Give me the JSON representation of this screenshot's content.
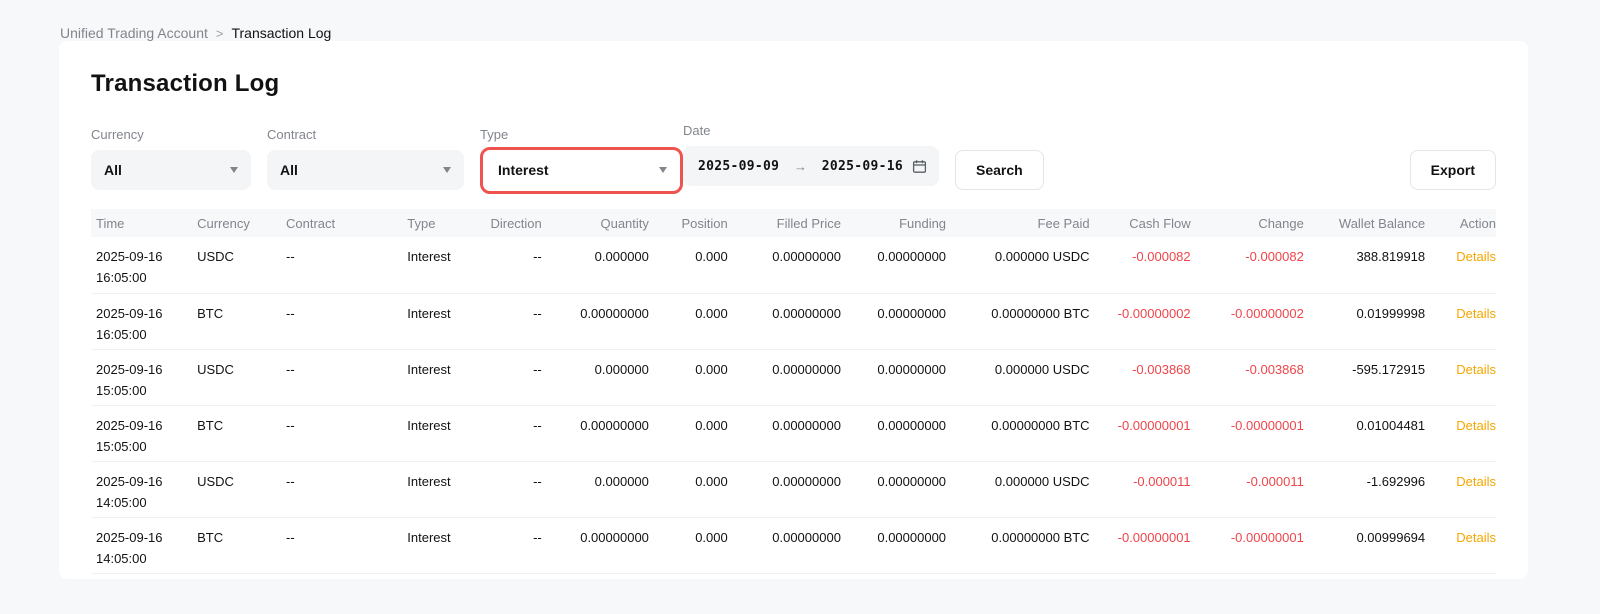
{
  "breadcrumb": {
    "parent": "Unified Trading Account",
    "separator": ">",
    "current": "Transaction Log"
  },
  "page": {
    "title": "Transaction Log"
  },
  "filters": {
    "currency": {
      "label": "Currency",
      "value": "All"
    },
    "contract": {
      "label": "Contract",
      "value": "All"
    },
    "type": {
      "label": "Type",
      "value": "Interest",
      "highlighted": true
    },
    "date": {
      "label": "Date",
      "from": "2025-09-09",
      "arrow": "→",
      "to": "2025-09-16"
    },
    "search_label": "Search",
    "export_label": "Export"
  },
  "colors": {
    "accent_orange": "#f7a600",
    "negative_red": "#ef454a",
    "highlight_border_red": "#ee534f"
  },
  "table": {
    "columns": [
      {
        "key": "time",
        "label": "Time",
        "align": "left"
      },
      {
        "key": "currency",
        "label": "Currency",
        "align": "left"
      },
      {
        "key": "contract",
        "label": "Contract",
        "align": "left"
      },
      {
        "key": "type",
        "label": "Type",
        "align": "left"
      },
      {
        "key": "direction",
        "label": "Direction",
        "align": "right"
      },
      {
        "key": "quantity",
        "label": "Quantity",
        "align": "right"
      },
      {
        "key": "position",
        "label": "Position",
        "align": "right"
      },
      {
        "key": "filled_price",
        "label": "Filled Price",
        "align": "right"
      },
      {
        "key": "funding",
        "label": "Funding",
        "align": "right"
      },
      {
        "key": "fee_paid",
        "label": "Fee Paid",
        "align": "right"
      },
      {
        "key": "cash_flow",
        "label": "Cash Flow",
        "align": "right"
      },
      {
        "key": "change",
        "label": "Change",
        "align": "right"
      },
      {
        "key": "wallet_balance",
        "label": "Wallet Balance",
        "align": "right"
      },
      {
        "key": "action",
        "label": "Action",
        "align": "right"
      }
    ],
    "rows": [
      {
        "date": "2025-09-16",
        "time": "16:05:00",
        "currency": "USDC",
        "contract": "--",
        "type": "Interest",
        "direction": "--",
        "quantity": "0.000000",
        "position": "0.000",
        "filled_price": "0.00000000",
        "funding": "0.00000000",
        "fee_paid": "0.000000 USDC",
        "cash_flow": "-0.000082",
        "change": "-0.000082",
        "wallet_balance": "388.819918",
        "action": "Details"
      },
      {
        "date": "2025-09-16",
        "time": "16:05:00",
        "currency": "BTC",
        "contract": "--",
        "type": "Interest",
        "direction": "--",
        "quantity": "0.00000000",
        "position": "0.000",
        "filled_price": "0.00000000",
        "funding": "0.00000000",
        "fee_paid": "0.00000000 BTC",
        "cash_flow": "-0.00000002",
        "change": "-0.00000002",
        "wallet_balance": "0.01999998",
        "action": "Details"
      },
      {
        "date": "2025-09-16",
        "time": "15:05:00",
        "currency": "USDC",
        "contract": "--",
        "type": "Interest",
        "direction": "--",
        "quantity": "0.000000",
        "position": "0.000",
        "filled_price": "0.00000000",
        "funding": "0.00000000",
        "fee_paid": "0.000000 USDC",
        "cash_flow": "-0.003868",
        "change": "-0.003868",
        "wallet_balance": "-595.172915",
        "action": "Details"
      },
      {
        "date": "2025-09-16",
        "time": "15:05:00",
        "currency": "BTC",
        "contract": "--",
        "type": "Interest",
        "direction": "--",
        "quantity": "0.00000000",
        "position": "0.000",
        "filled_price": "0.00000000",
        "funding": "0.00000000",
        "fee_paid": "0.00000000 BTC",
        "cash_flow": "-0.00000001",
        "change": "-0.00000001",
        "wallet_balance": "0.01004481",
        "action": "Details"
      },
      {
        "date": "2025-09-16",
        "time": "14:05:00",
        "currency": "USDC",
        "contract": "--",
        "type": "Interest",
        "direction": "--",
        "quantity": "0.000000",
        "position": "0.000",
        "filled_price": "0.00000000",
        "funding": "0.00000000",
        "fee_paid": "0.000000 USDC",
        "cash_flow": "-0.000011",
        "change": "-0.000011",
        "wallet_balance": "-1.692996",
        "action": "Details"
      },
      {
        "date": "2025-09-16",
        "time": "14:05:00",
        "currency": "BTC",
        "contract": "--",
        "type": "Interest",
        "direction": "--",
        "quantity": "0.00000000",
        "position": "0.000",
        "filled_price": "0.00000000",
        "funding": "0.00000000",
        "fee_paid": "0.00000000 BTC",
        "cash_flow": "-0.00000001",
        "change": "-0.00000001",
        "wallet_balance": "0.00999694",
        "action": "Details"
      }
    ]
  }
}
